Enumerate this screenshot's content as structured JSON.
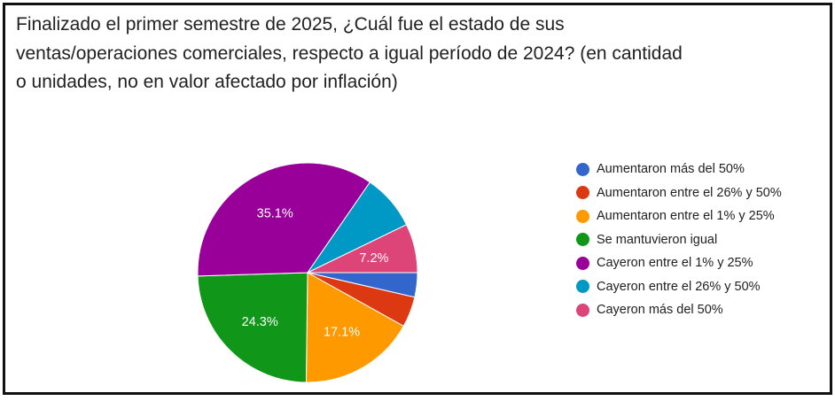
{
  "chart_data": {
    "type": "pie",
    "title": "Finalizado el primer semestre de 2025, ¿Cuál fue el estado de sus ventas/operaciones comerciales, respecto a igual período de 2024? (en cantidad o unidades, no en valor afectado por inflación)",
    "legend_position": "right",
    "slices": [
      {
        "label": "Aumentaron más del 50%",
        "value": 3.6,
        "color": "#3366cc",
        "display": ""
      },
      {
        "label": "Aumentaron entre el 26% y 50%",
        "value": 4.5,
        "color": "#dc3912",
        "display": ""
      },
      {
        "label": "Aumentaron entre el 1% y 25%",
        "value": 17.1,
        "color": "#ff9900",
        "display": "17.1%"
      },
      {
        "label": "Se mantuvieron igual",
        "value": 24.3,
        "color": "#109618",
        "display": "24.3%"
      },
      {
        "label": "Cayeron entre el 1% y 25%",
        "value": 35.1,
        "color": "#990099",
        "display": "35.1%"
      },
      {
        "label": "Cayeron entre el 26% y 50%",
        "value": 8.2,
        "color": "#0099c6",
        "display": ""
      },
      {
        "label": "Cayeron más del 50%",
        "value": 7.2,
        "color": "#dd4477",
        "display": "7.2%"
      }
    ]
  }
}
